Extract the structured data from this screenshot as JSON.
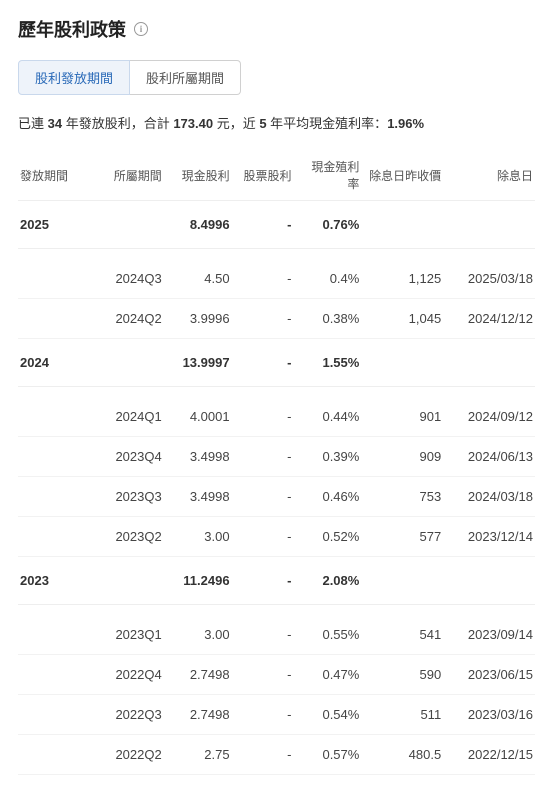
{
  "header": {
    "title": "歷年股利政策",
    "info_icon": "i"
  },
  "tabs": {
    "active": "股利發放期間",
    "inactive": "股利所屬期間"
  },
  "summary": {
    "pre1": "已連 ",
    "years": "34",
    "mid1": " 年發放股利，合計 ",
    "total": "173.40",
    "mid2": " 元，近 ",
    "avg_years": "5",
    "mid3": " 年平均現金殖利率：",
    "avg_yield": "1.96%"
  },
  "columns": {
    "period": "發放期間",
    "belong": "所屬期間",
    "cash": "現金股利",
    "stock": "股票股利",
    "yield": "現金殖利率",
    "close": "除息日昨收價",
    "exdate": "除息日"
  },
  "groups": [
    {
      "year": "2025",
      "sum_cash": "8.4996",
      "sum_stock": "-",
      "sum_yield": "0.76%",
      "rows": [
        {
          "belong": "2024Q3",
          "cash": "4.50",
          "stock": "-",
          "yield": "0.4%",
          "close": "1,125",
          "exdate": "2025/03/18"
        },
        {
          "belong": "2024Q2",
          "cash": "3.9996",
          "stock": "-",
          "yield": "0.38%",
          "close": "1,045",
          "exdate": "2024/12/12"
        }
      ]
    },
    {
      "year": "2024",
      "sum_cash": "13.9997",
      "sum_stock": "-",
      "sum_yield": "1.55%",
      "rows": [
        {
          "belong": "2024Q1",
          "cash": "4.0001",
          "stock": "-",
          "yield": "0.44%",
          "close": "901",
          "exdate": "2024/09/12"
        },
        {
          "belong": "2023Q4",
          "cash": "3.4998",
          "stock": "-",
          "yield": "0.39%",
          "close": "909",
          "exdate": "2024/06/13"
        },
        {
          "belong": "2023Q3",
          "cash": "3.4998",
          "stock": "-",
          "yield": "0.46%",
          "close": "753",
          "exdate": "2024/03/18"
        },
        {
          "belong": "2023Q2",
          "cash": "3.00",
          "stock": "-",
          "yield": "0.52%",
          "close": "577",
          "exdate": "2023/12/14"
        }
      ]
    },
    {
      "year": "2023",
      "sum_cash": "11.2496",
      "sum_stock": "-",
      "sum_yield": "2.08%",
      "rows": [
        {
          "belong": "2023Q1",
          "cash": "3.00",
          "stock": "-",
          "yield": "0.55%",
          "close": "541",
          "exdate": "2023/09/14"
        },
        {
          "belong": "2022Q4",
          "cash": "2.7498",
          "stock": "-",
          "yield": "0.47%",
          "close": "590",
          "exdate": "2023/06/15"
        },
        {
          "belong": "2022Q3",
          "cash": "2.7498",
          "stock": "-",
          "yield": "0.54%",
          "close": "511",
          "exdate": "2023/03/16"
        },
        {
          "belong": "2022Q2",
          "cash": "2.75",
          "stock": "-",
          "yield": "0.57%",
          "close": "480.5",
          "exdate": "2022/12/15"
        }
      ]
    }
  ]
}
